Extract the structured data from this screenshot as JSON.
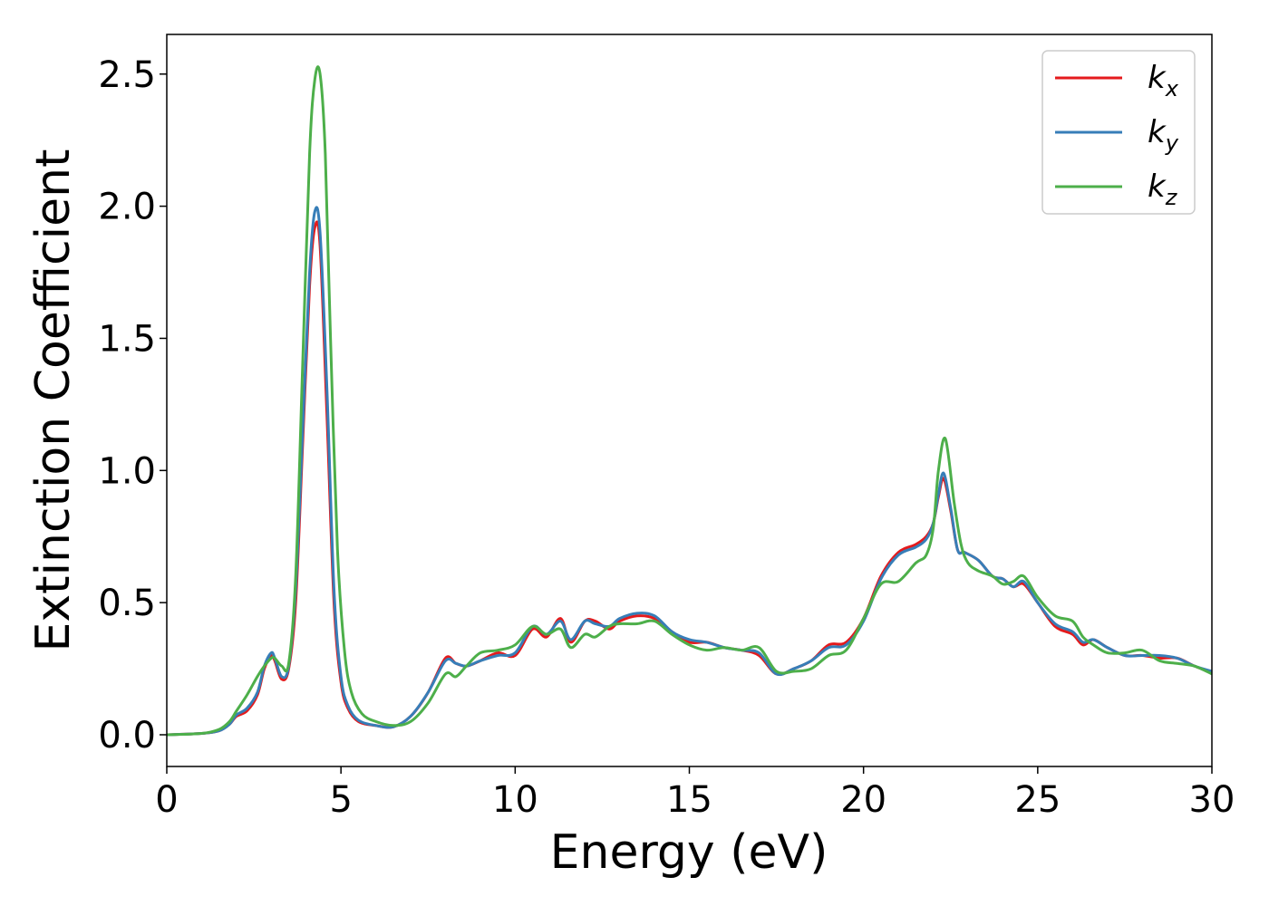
{
  "chart_data": {
    "type": "line",
    "xlabel": "Energy (eV)",
    "ylabel": "Extinction Coefficient",
    "xlim": [
      0,
      30
    ],
    "ylim": [
      -0.12,
      2.65
    ],
    "xticks": [
      0,
      5,
      10,
      15,
      20,
      25,
      30
    ],
    "xtick_labels": [
      "0",
      "5",
      "10",
      "15",
      "20",
      "25",
      "30"
    ],
    "yticks": [
      0.0,
      0.5,
      1.0,
      1.5,
      2.0,
      2.5
    ],
    "ytick_labels": [
      "0.0",
      "0.5",
      "1.0",
      "1.5",
      "2.0",
      "2.5"
    ],
    "grid": false,
    "legend_position": "top-right",
    "series": [
      {
        "name": "k_x",
        "label_main": "k",
        "label_sub": "x",
        "color": "#e41a1c",
        "x": [
          0,
          1,
          1.5,
          1.8,
          2,
          2.3,
          2.6,
          2.8,
          3.0,
          3.1,
          3.3,
          3.5,
          3.7,
          3.9,
          4.1,
          4.25,
          4.4,
          4.6,
          4.8,
          5.0,
          5.2,
          5.5,
          6.0,
          6.5,
          7.0,
          7.5,
          8.0,
          8.3,
          8.6,
          9.0,
          9.5,
          10.0,
          10.5,
          10.9,
          11.3,
          11.6,
          12.0,
          12.3,
          12.7,
          13.0,
          13.5,
          14.0,
          14.5,
          15.0,
          15.5,
          16.0,
          16.5,
          17.0,
          17.5,
          18.0,
          18.5,
          19.0,
          19.5,
          20.0,
          20.5,
          21.0,
          21.5,
          21.8,
          22.0,
          22.15,
          22.3,
          22.5,
          22.7,
          22.9,
          23.3,
          23.7,
          24.0,
          24.3,
          24.6,
          25.0,
          25.5,
          26.0,
          26.3,
          26.6,
          27.0,
          27.5,
          28.0,
          28.5,
          29.0,
          29.5,
          30.0
        ],
        "y": [
          0,
          0.005,
          0.015,
          0.04,
          0.07,
          0.09,
          0.15,
          0.25,
          0.3,
          0.28,
          0.21,
          0.25,
          0.5,
          1.1,
          1.7,
          1.92,
          1.85,
          1.2,
          0.5,
          0.2,
          0.1,
          0.05,
          0.035,
          0.03,
          0.07,
          0.16,
          0.29,
          0.27,
          0.26,
          0.28,
          0.31,
          0.3,
          0.4,
          0.37,
          0.44,
          0.35,
          0.43,
          0.43,
          0.4,
          0.43,
          0.45,
          0.44,
          0.39,
          0.35,
          0.35,
          0.33,
          0.32,
          0.3,
          0.23,
          0.25,
          0.28,
          0.34,
          0.35,
          0.44,
          0.6,
          0.69,
          0.72,
          0.75,
          0.8,
          0.9,
          0.97,
          0.85,
          0.7,
          0.69,
          0.66,
          0.6,
          0.59,
          0.56,
          0.57,
          0.5,
          0.41,
          0.38,
          0.34,
          0.36,
          0.33,
          0.3,
          0.3,
          0.29,
          0.29,
          0.26,
          0.235
        ]
      },
      {
        "name": "k_y",
        "label_main": "k",
        "label_sub": "y",
        "color": "#377eb8",
        "x": [
          0,
          1,
          1.5,
          1.8,
          2,
          2.3,
          2.6,
          2.8,
          3.0,
          3.1,
          3.3,
          3.5,
          3.7,
          3.9,
          4.1,
          4.25,
          4.4,
          4.6,
          4.8,
          5.0,
          5.2,
          5.5,
          6.0,
          6.5,
          7.0,
          7.5,
          8.0,
          8.3,
          8.6,
          9.0,
          9.5,
          10.0,
          10.5,
          10.9,
          11.3,
          11.6,
          12.0,
          12.3,
          12.7,
          13.0,
          13.5,
          14.0,
          14.5,
          15.0,
          15.5,
          16.0,
          16.5,
          17.0,
          17.5,
          18.0,
          18.5,
          19.0,
          19.5,
          20.0,
          20.5,
          21.0,
          21.5,
          21.8,
          22.0,
          22.15,
          22.3,
          22.5,
          22.7,
          22.9,
          23.3,
          23.7,
          24.0,
          24.3,
          24.6,
          25.0,
          25.5,
          26.0,
          26.3,
          26.6,
          27.0,
          27.5,
          28.0,
          28.5,
          29.0,
          29.5,
          30.0
        ],
        "y": [
          0,
          0.005,
          0.015,
          0.04,
          0.075,
          0.1,
          0.16,
          0.26,
          0.31,
          0.29,
          0.22,
          0.26,
          0.55,
          1.15,
          1.75,
          1.98,
          1.9,
          1.3,
          0.55,
          0.22,
          0.11,
          0.055,
          0.035,
          0.03,
          0.07,
          0.16,
          0.28,
          0.27,
          0.26,
          0.28,
          0.3,
          0.31,
          0.41,
          0.38,
          0.43,
          0.36,
          0.43,
          0.42,
          0.41,
          0.44,
          0.46,
          0.45,
          0.39,
          0.36,
          0.35,
          0.33,
          0.32,
          0.31,
          0.23,
          0.25,
          0.28,
          0.33,
          0.34,
          0.43,
          0.59,
          0.68,
          0.71,
          0.74,
          0.8,
          0.91,
          0.99,
          0.86,
          0.7,
          0.69,
          0.66,
          0.6,
          0.59,
          0.56,
          0.58,
          0.5,
          0.42,
          0.39,
          0.35,
          0.36,
          0.33,
          0.3,
          0.3,
          0.3,
          0.29,
          0.26,
          0.24
        ]
      },
      {
        "name": "k_z",
        "label_main": "k",
        "label_sub": "z",
        "color": "#4daf4a",
        "x": [
          0,
          1,
          1.5,
          1.8,
          2,
          2.3,
          2.6,
          2.8,
          3.0,
          3.1,
          3.3,
          3.5,
          3.7,
          3.9,
          4.1,
          4.25,
          4.4,
          4.55,
          4.7,
          4.9,
          5.1,
          5.3,
          5.6,
          6.0,
          6.5,
          7.0,
          7.5,
          8.0,
          8.3,
          8.6,
          9.0,
          9.5,
          10.0,
          10.5,
          10.9,
          11.3,
          11.6,
          12.0,
          12.3,
          12.7,
          13.0,
          13.5,
          14.0,
          14.5,
          15.0,
          15.5,
          16.0,
          16.5,
          17.0,
          17.5,
          18.0,
          18.5,
          19.0,
          19.5,
          20.0,
          20.5,
          21.0,
          21.5,
          21.8,
          22.0,
          22.15,
          22.35,
          22.6,
          22.8,
          23.0,
          23.3,
          23.7,
          24.0,
          24.3,
          24.6,
          25.0,
          25.5,
          26.0,
          26.3,
          26.6,
          27.0,
          27.5,
          28.0,
          28.5,
          29.0,
          29.5,
          30.0
        ],
        "y": [
          0,
          0.005,
          0.02,
          0.05,
          0.09,
          0.15,
          0.22,
          0.26,
          0.29,
          0.29,
          0.26,
          0.27,
          0.6,
          1.4,
          2.2,
          2.48,
          2.5,
          2.2,
          1.5,
          0.7,
          0.32,
          0.16,
          0.08,
          0.05,
          0.035,
          0.05,
          0.12,
          0.23,
          0.22,
          0.26,
          0.31,
          0.32,
          0.34,
          0.41,
          0.38,
          0.4,
          0.33,
          0.38,
          0.37,
          0.41,
          0.42,
          0.42,
          0.43,
          0.38,
          0.34,
          0.32,
          0.33,
          0.32,
          0.33,
          0.24,
          0.24,
          0.25,
          0.3,
          0.32,
          0.44,
          0.57,
          0.58,
          0.65,
          0.68,
          0.78,
          1.0,
          1.12,
          0.88,
          0.72,
          0.65,
          0.62,
          0.6,
          0.57,
          0.58,
          0.6,
          0.52,
          0.45,
          0.43,
          0.37,
          0.34,
          0.31,
          0.31,
          0.32,
          0.28,
          0.27,
          0.26,
          0.23
        ]
      }
    ]
  }
}
